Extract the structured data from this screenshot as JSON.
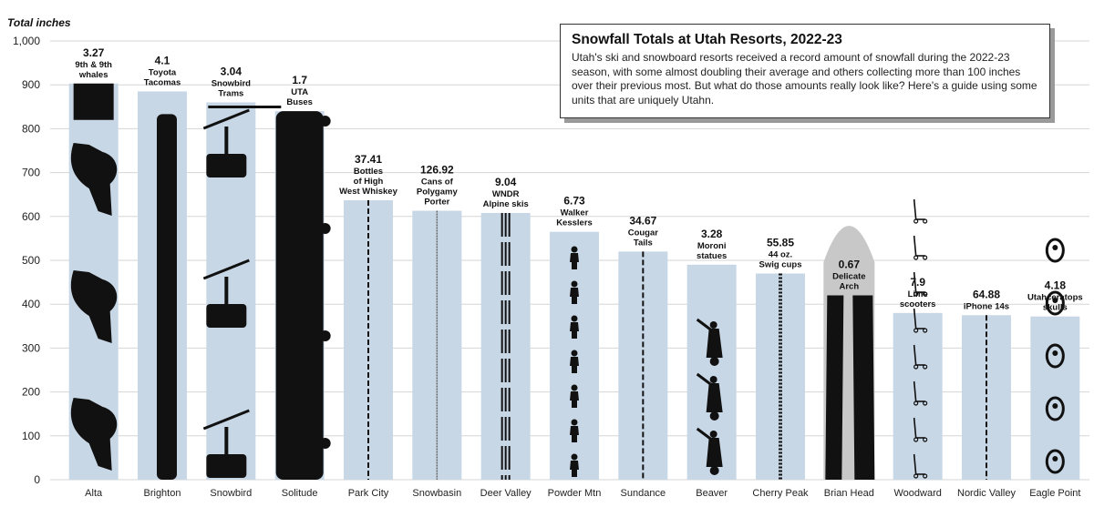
{
  "chart_data": {
    "type": "bar",
    "title": "Snowfall Totals at Utah Resorts, 2022-23",
    "description": "Utah's ski and snowboard resorts received a record amount of snowfall during the 2022-23 season, with some almost doubling their average and others collecting more than 100 inches over their previous most. But what do those amounts really look like? Here's a guide using some units that are uniquely Utahn.",
    "ylabel": "Total inches",
    "xlabel": "",
    "ylim": [
      0,
      1000
    ],
    "yticks": [
      "0",
      "100",
      "200",
      "300",
      "400",
      "500",
      "600",
      "700",
      "800",
      "900",
      "1,000"
    ],
    "ytick_values": [
      0,
      100,
      200,
      300,
      400,
      500,
      600,
      700,
      800,
      900,
      1000
    ],
    "grid": true,
    "categories": [
      "Alta",
      "Brighton",
      "Snowbird",
      "Solitude",
      "Park City",
      "Snowbasin",
      "Deer Valley",
      "Powder Mtn",
      "Sundance",
      "Beaver",
      "Cherry Peak",
      "Brian Head",
      "Woodward",
      "Nordic Valley",
      "Eagle Point"
    ],
    "values": [
      903,
      885,
      860,
      840,
      637,
      613,
      608,
      565,
      520,
      490,
      470,
      420,
      380,
      375,
      372
    ],
    "unit_labels": [
      {
        "count": "3.27",
        "unit": [
          "9th & 9th",
          "whales"
        ]
      },
      {
        "count": "4.1",
        "unit": [
          "Toyota",
          "Tacomas"
        ]
      },
      {
        "count": "3.04",
        "unit": [
          "Snowbird",
          "Trams"
        ]
      },
      {
        "count": "1.7",
        "unit": [
          "UTA",
          "Buses"
        ]
      },
      {
        "count": "37.41",
        "unit": [
          "Bottles",
          "of High",
          "West Whiskey"
        ]
      },
      {
        "count": "126.92",
        "unit": [
          "Cans of",
          "Polygamy",
          "Porter"
        ]
      },
      {
        "count": "9.04",
        "unit": [
          "WNDR",
          "Alpine skis"
        ]
      },
      {
        "count": "6.73",
        "unit": [
          "Walker",
          "Kesslers"
        ]
      },
      {
        "count": "34.67",
        "unit": [
          "Cougar",
          "Tails"
        ]
      },
      {
        "count": "3.28",
        "unit": [
          "Moroni",
          "statues"
        ]
      },
      {
        "count": "55.85",
        "unit": [
          "44 oz.",
          "Swig cups"
        ]
      },
      {
        "count": "0.67",
        "unit": [
          "Delicate",
          "Arch"
        ]
      },
      {
        "count": "7.9",
        "unit": [
          "Lime",
          "scooters"
        ]
      },
      {
        "count": "64.88",
        "unit": [
          "iPhone 14s"
        ]
      },
      {
        "count": "4.18",
        "unit": [
          "Utahceratops",
          "skulls"
        ]
      }
    ],
    "unit_icons": [
      "whale-icon",
      "truck-icon",
      "tram-icon",
      "bus-icon",
      "bottle-icon",
      "can-icon",
      "ski-icon",
      "person-icon",
      "tail-icon",
      "statue-icon",
      "cup-icon",
      "arch-icon",
      "scooter-icon",
      "phone-icon",
      "skull-icon"
    ],
    "colors": {
      "bar": "#c8d7e6",
      "icon": "#111111",
      "arch_ghost": "#c8c8c8",
      "grid": "#d6d6d6"
    }
  }
}
